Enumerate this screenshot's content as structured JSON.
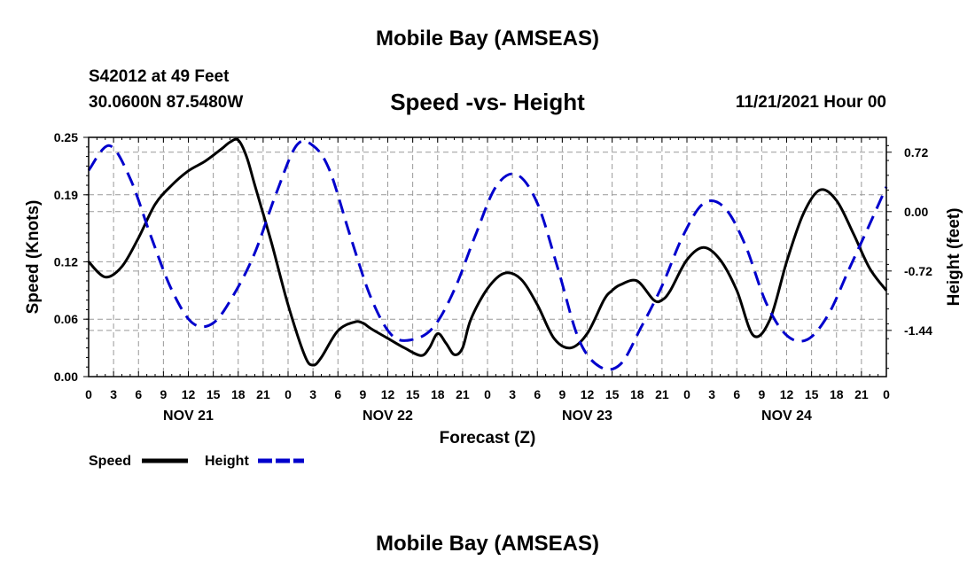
{
  "header": {
    "title": "Mobile Bay (AMSEAS)",
    "station": "S42012 at 49 Feet",
    "coords": "30.0600N  87.5480W",
    "subtitle": "Speed -vs- Height",
    "datetime": "11/21/2021 Hour 00"
  },
  "footer": {
    "title": "Mobile Bay (AMSEAS)"
  },
  "colors": {
    "speed": "#000000",
    "height": "#0000cc",
    "grid": "#999999"
  },
  "chart_data": {
    "type": "line",
    "xlabel": "Forecast (Z)",
    "ylabel": "Speed (Knots)",
    "y2label": "Height (feet)",
    "xlim": [
      0,
      96
    ],
    "ylim": [
      0,
      0.25
    ],
    "y2lim": [
      -2.0,
      0.9
    ],
    "x_ticks": [
      0,
      3,
      6,
      9,
      12,
      15,
      18,
      21,
      24,
      27,
      30,
      33,
      36,
      39,
      42,
      45,
      48,
      51,
      54,
      57,
      60,
      63,
      66,
      69,
      72,
      75,
      78,
      81,
      84,
      87,
      90,
      93,
      96
    ],
    "x_tick_labels": [
      "0",
      "3",
      "6",
      "9",
      "12",
      "15",
      "18",
      "21",
      "0",
      "3",
      "6",
      "9",
      "12",
      "15",
      "18",
      "21",
      "0",
      "3",
      "6",
      "9",
      "12",
      "15",
      "18",
      "21",
      "0",
      "3",
      "6",
      "9",
      "12",
      "15",
      "18",
      "21",
      "0"
    ],
    "day_labels": [
      {
        "x": 12,
        "label": "NOV 21"
      },
      {
        "x": 36,
        "label": "NOV 22"
      },
      {
        "x": 60,
        "label": "NOV 23"
      },
      {
        "x": 84,
        "label": "NOV 24"
      }
    ],
    "y_ticks": [
      0.0,
      0.06,
      0.12,
      0.19,
      0.25
    ],
    "y_tick_labels": [
      "0.00",
      "0.06",
      "0.12",
      "0.19",
      "0.25"
    ],
    "y2_ticks": [
      0.72,
      0.0,
      -0.72,
      -1.44
    ],
    "y2_tick_labels": [
      "0.72",
      "0.00",
      "-0.72",
      "-1.44"
    ],
    "series": [
      {
        "name": "Speed",
        "axis": "left",
        "style": "solid",
        "x": [
          0,
          2,
          4,
          6,
          8,
          10,
          12,
          14,
          16,
          17,
          18,
          19,
          20,
          22,
          24,
          26,
          27,
          28,
          30,
          32,
          33,
          34,
          36,
          38,
          40,
          41,
          42,
          43,
          44,
          45,
          46,
          48,
          50,
          52,
          54,
          56,
          58,
          60,
          62,
          63,
          64,
          66,
          68,
          69,
          70,
          72,
          74,
          76,
          78,
          80,
          82,
          84,
          86,
          88,
          90,
          92,
          94,
          96
        ],
        "values": [
          0.12,
          0.104,
          0.115,
          0.145,
          0.18,
          0.2,
          0.215,
          0.225,
          0.238,
          0.245,
          0.247,
          0.23,
          0.2,
          0.14,
          0.075,
          0.022,
          0.012,
          0.02,
          0.048,
          0.057,
          0.056,
          0.05,
          0.04,
          0.03,
          0.022,
          0.03,
          0.045,
          0.035,
          0.023,
          0.03,
          0.06,
          0.092,
          0.108,
          0.102,
          0.075,
          0.04,
          0.03,
          0.045,
          0.08,
          0.09,
          0.096,
          0.1,
          0.08,
          0.08,
          0.09,
          0.122,
          0.135,
          0.122,
          0.09,
          0.043,
          0.06,
          0.12,
          0.17,
          0.195,
          0.184,
          0.15,
          0.113,
          0.09
        ]
      },
      {
        "name": "Height",
        "axis": "right",
        "style": "dashed",
        "x": [
          0,
          2.5,
          5,
          7.5,
          10,
          12.5,
          15,
          17.5,
          20,
          22.5,
          25,
          27,
          29,
          31.5,
          34,
          36.5,
          39,
          41.5,
          44,
          46.5,
          49,
          51.5,
          54,
          56.5,
          59,
          61.5,
          64,
          66.5,
          69,
          71.5,
          74,
          76.5,
          79,
          81.5,
          84,
          86.5,
          89,
          91.5,
          94,
          96
        ],
        "values": [
          0.5,
          0.8,
          0.4,
          -0.3,
          -0.95,
          -1.35,
          -1.35,
          -1.0,
          -0.5,
          0.2,
          0.8,
          0.8,
          0.5,
          -0.3,
          -1.05,
          -1.5,
          -1.55,
          -1.4,
          -0.95,
          -0.3,
          0.3,
          0.45,
          0.1,
          -0.7,
          -1.55,
          -1.88,
          -1.85,
          -1.4,
          -0.9,
          -0.3,
          0.1,
          0.05,
          -0.4,
          -1.1,
          -1.5,
          -1.55,
          -1.25,
          -0.7,
          -0.15,
          0.3
        ]
      }
    ],
    "legend": [
      {
        "name": "Speed",
        "style": "solid"
      },
      {
        "name": "Height",
        "style": "dashed"
      }
    ],
    "legend_position": "bottom-left",
    "grid": true
  }
}
